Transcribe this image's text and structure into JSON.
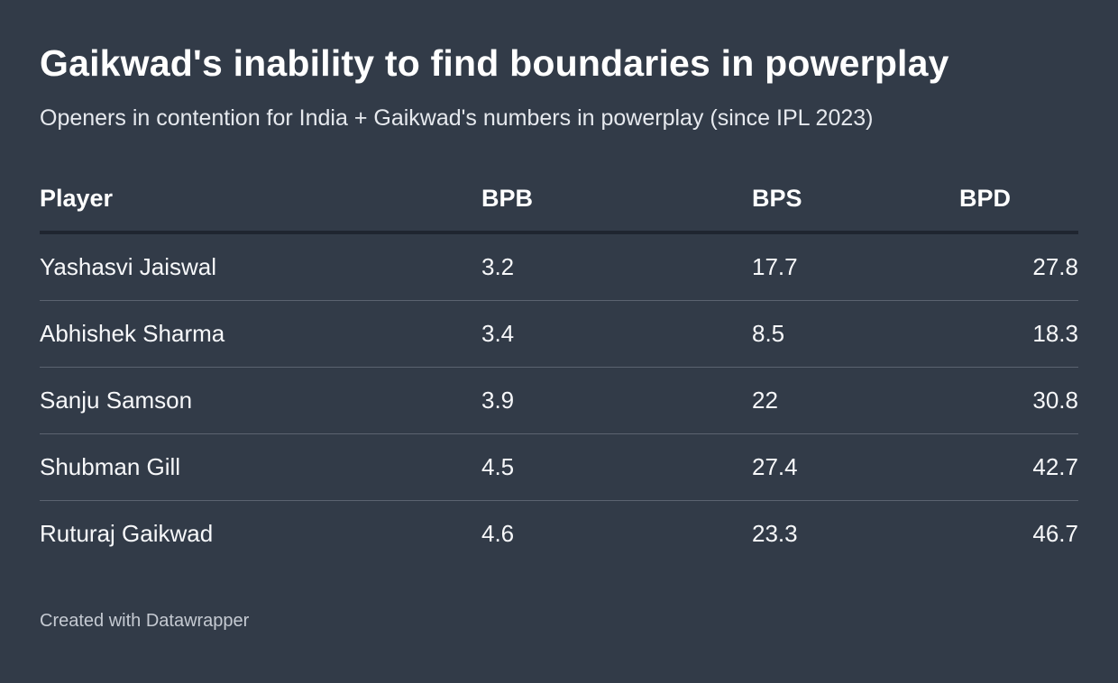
{
  "title": "Gaikwad's inability to find boundaries in powerplay",
  "subtitle": "Openers in contention for India + Gaikwad's numbers in powerplay (since IPL 2023)",
  "footer": "Created with Datawrapper",
  "colors": {
    "background": "#323b48",
    "text": "#ffffff",
    "header_rule": "#1f2530",
    "row_rule": "#5b6370"
  },
  "chart_data": {
    "type": "table",
    "title": "Gaikwad's inability to find boundaries in powerplay",
    "subtitle": "Openers in contention for India + Gaikwad's numbers in powerplay (since IPL 2023)",
    "columns": [
      "Player",
      "BPB",
      "BPS",
      "BPD"
    ],
    "rows": [
      {
        "player": "Yashasvi Jaiswal",
        "bpb": "3.2",
        "bps": "17.7",
        "bpd": "27.8"
      },
      {
        "player": "Abhishek Sharma",
        "bpb": "3.4",
        "bps": "8.5",
        "bpd": "18.3"
      },
      {
        "player": "Sanju Samson",
        "bpb": "3.9",
        "bps": "22",
        "bpd": "30.8"
      },
      {
        "player": "Shubman Gill",
        "bpb": "4.5",
        "bps": "27.4",
        "bpd": "42.7"
      },
      {
        "player": "Ruturaj Gaikwad",
        "bpb": "4.6",
        "bps": "23.3",
        "bpd": "46.7"
      }
    ]
  }
}
